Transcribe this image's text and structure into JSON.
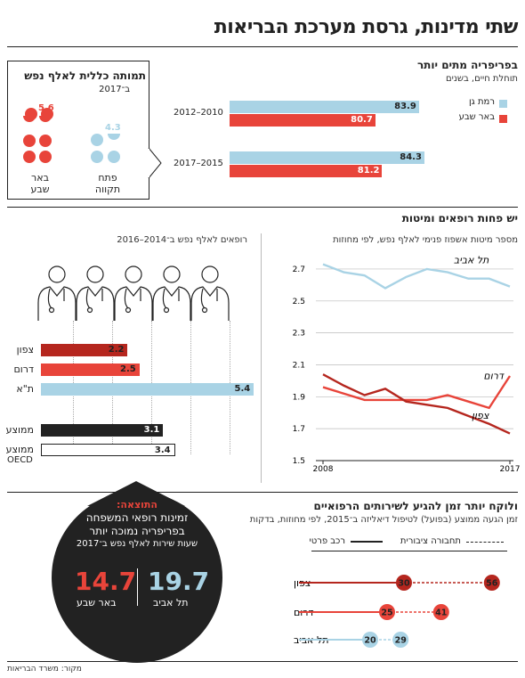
{
  "title": "שתי מדינות, גרסת מערכת הבריאות",
  "colors": {
    "red": "#e8443a",
    "darkred": "#b5261e",
    "lightblue": "#a9d3e5",
    "black": "#222222"
  },
  "section1": {
    "title": "בפריפריה מתים יותר",
    "subtitle": "תוחלת חיים, בשנים",
    "legend": [
      "רמת גן",
      "באר שבע"
    ],
    "box": {
      "title": "תמותה כללית לאלף נפש",
      "subtitle": "ב־2017",
      "cities": [
        {
          "name_line1": "באר",
          "name_line2": "שבע",
          "value": "5.6"
        },
        {
          "name_line1": "פתח",
          "name_line2": "תקווה",
          "value": "4.3"
        }
      ]
    }
  },
  "section2": {
    "title": "יש פחות רופאים ומיטות",
    "doctors_label": "רופאים לאלף נפש ב־2014–2016",
    "beds_label": "מספר מיטות אשפוז פנימי לאלף נפש, לפי מחוזות",
    "doctors_rows": [
      {
        "label": "צפון",
        "value": 2.2,
        "color": "#b5261e"
      },
      {
        "label": "דרום",
        "value": 2.5,
        "color": "#e8443a"
      },
      {
        "label": "ת\"א",
        "value": 5.4,
        "color": "#a9d3e5"
      },
      {
        "label": "ממוצע",
        "value": 3.1,
        "color": "#222222"
      },
      {
        "label": "ממוצע",
        "label2": "OECD",
        "value": 3.4,
        "color": "#ffffff"
      }
    ]
  },
  "section3": {
    "title": "ולוקח יותר זמן להגיע לשירותים הרפואיים",
    "subtitle": "זמן הגעה ממוצע (בפועל) לטיפול דיאליזה ב־2015, לפי מחוזות, בדקות",
    "legend_transit": "תחבורה ציבורית",
    "legend_car": "רכב פרטי",
    "result": {
      "head": "התוצאה:",
      "line1": "זמינות רופאי המשפחה",
      "line2": "בפריפריה נמוכה יותר",
      "line3": "שעות שירות לאלף נפש ב־2017",
      "val_left": "14.7",
      "label_left": "באר שבע",
      "val_right": "19.7",
      "label_right": "תל אביב"
    }
  },
  "source": "מקור: משרד הבריאות",
  "chart_data": [
    {
      "type": "bar",
      "title": "בפריפריה מתים יותר",
      "subtitle": "תוחלת חיים, בשנים",
      "categories": [
        "2012–2010",
        "2017–2015"
      ],
      "series": [
        {
          "name": "רמת גן",
          "values": [
            83.9,
            84.3
          ],
          "color": "#a9d3e5"
        },
        {
          "name": "באר שבע",
          "values": [
            80.7,
            81.2
          ],
          "color": "#e8443a"
        }
      ]
    },
    {
      "type": "line",
      "title": "מספר מיטות אשפוז פנימי לאלף נפש, לפי מחוזות",
      "x_ticks": [
        "2008",
        "2017"
      ],
      "y_ticks": [
        1.5,
        1.7,
        1.9,
        2.1,
        2.3,
        2.5,
        2.7
      ],
      "ylim": [
        1.5,
        2.75
      ],
      "xlim": [
        2008,
        2017
      ],
      "series": [
        {
          "name": "תל אביב",
          "color": "#a9d3e5",
          "x": [
            2008,
            2009,
            2010,
            2011,
            2012,
            2013,
            2014,
            2015,
            2016,
            2017
          ],
          "values": [
            2.73,
            2.68,
            2.66,
            2.58,
            2.65,
            2.7,
            2.68,
            2.64,
            2.64,
            2.59
          ]
        },
        {
          "name": "דרום",
          "color": "#e8443a",
          "x": [
            2008,
            2009,
            2010,
            2011,
            2012,
            2013,
            2014,
            2015,
            2016,
            2017
          ],
          "values": [
            1.96,
            1.92,
            1.88,
            1.88,
            1.88,
            1.88,
            1.91,
            1.87,
            1.83,
            2.03
          ]
        },
        {
          "name": "צפון",
          "color": "#b5261e",
          "x": [
            2008,
            2009,
            2010,
            2011,
            2012,
            2013,
            2014,
            2015,
            2016,
            2017
          ],
          "values": [
            2.04,
            1.97,
            1.91,
            1.95,
            1.87,
            1.85,
            1.83,
            1.78,
            1.73,
            1.67
          ]
        }
      ]
    },
    {
      "type": "bar",
      "title": "רופאים לאלף נפש ב־2014–2016",
      "categories": [
        "צפון",
        "דרום",
        "ת\"א",
        "ממוצע",
        "ממוצע OECD"
      ],
      "values": [
        2.2,
        2.5,
        5.4,
        3.1,
        3.4
      ]
    },
    {
      "type": "scatter",
      "title": "ולוקח יותר זמן להגיע לשירותים הרפואיים",
      "categories": [
        "צפון",
        "דרום",
        "תל אביב"
      ],
      "series": [
        {
          "name": "רכב פרטי",
          "values": [
            30,
            25,
            20
          ]
        },
        {
          "name": "תחבורה ציבורית",
          "values": [
            56,
            41,
            29
          ]
        }
      ],
      "colors": [
        "#b5261e",
        "#e8443a",
        "#a9d3e5"
      ]
    }
  ]
}
